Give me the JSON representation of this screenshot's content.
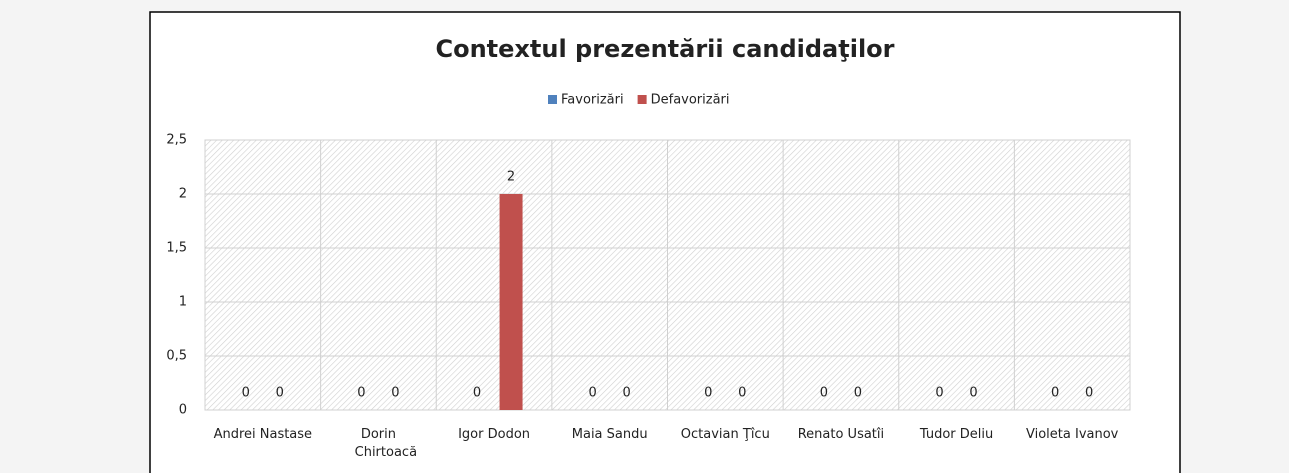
{
  "chart_data": {
    "type": "bar",
    "title": "Contextul prezentării candidaţilor",
    "categories": [
      "Andrei Nastase",
      "Dorin Chirtoacă",
      "Igor Dodon",
      "Maia Sandu",
      "Octavian Ţîcu",
      "Renato Usatîi",
      "Tudor Deliu",
      "Violeta Ivanov"
    ],
    "series": [
      {
        "name": "Favorizări",
        "color": "#4f81bd",
        "values": [
          0,
          0,
          0,
          0,
          0,
          0,
          0,
          0
        ]
      },
      {
        "name": "Defavorizări",
        "color": "#c0504d",
        "values": [
          0,
          0,
          2,
          0,
          0,
          0,
          0,
          0
        ]
      }
    ],
    "ylim": [
      0,
      2.5
    ],
    "yticks": [
      0,
      {
        "value": 0.5,
        "label": "0,5"
      },
      1,
      {
        "value": 1.5,
        "label": "1,5"
      },
      2,
      {
        "value": 2.5,
        "label": "2,5"
      }
    ],
    "grid": true,
    "legend": "top"
  }
}
